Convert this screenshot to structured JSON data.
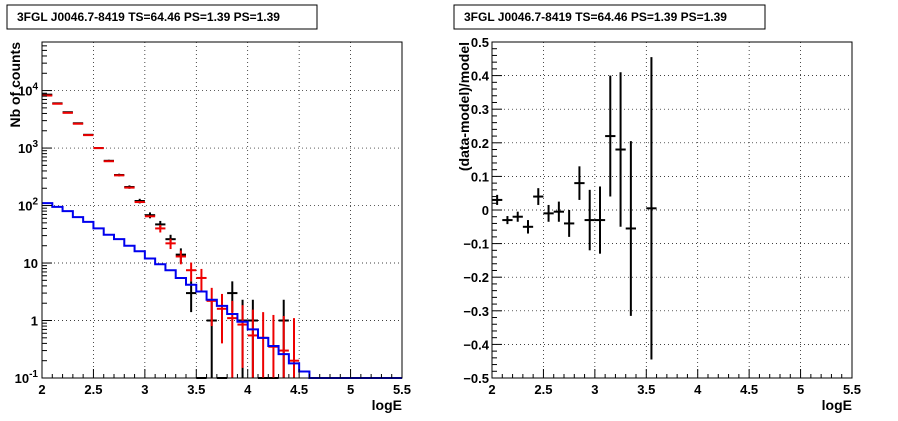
{
  "chart_data": [
    {
      "type": "scatter",
      "title": "3FGL J0046.7-8419 TS=64.46 PS=1.39 PS=1.39",
      "xlabel": "logE",
      "ylabel": "Nb of counts",
      "xlim": [
        2,
        5.5
      ],
      "ylim": [
        0.1,
        70000
      ],
      "yscale": "log",
      "grid": true,
      "x_ticks": [
        "2",
        "2.5",
        "3",
        "3.5",
        "4",
        "4.5",
        "5",
        "5.5"
      ],
      "y_ticks": [
        "10⁻¹",
        "1",
        "10",
        "10²",
        "10³",
        "10⁴"
      ],
      "series": [
        {
          "kind": "errorbar",
          "color": "#000000",
          "x": [
            2.05,
            2.15,
            2.25,
            2.35,
            2.45,
            2.55,
            2.65,
            2.75,
            2.85,
            2.95,
            3.05,
            3.15,
            3.25,
            3.35,
            3.45,
            3.55,
            3.65,
            3.75,
            3.85,
            3.95,
            4.05,
            4.15,
            4.25,
            4.35
          ],
          "y": [
            8500,
            6000,
            4200,
            2700,
            1700,
            1000,
            600,
            340,
            210,
            120,
            68,
            47,
            26,
            14,
            3,
            0.1,
            1,
            0.1,
            3,
            1,
            1,
            0.1,
            0.1,
            1
          ],
          "yerr_low": [
            85,
            75,
            60,
            50,
            40,
            30,
            25,
            18,
            14,
            11,
            8,
            7,
            5,
            4,
            1.6,
            0,
            0.95,
            0,
            1.6,
            0.95,
            0.95,
            0,
            0,
            0.95
          ],
          "yerr_high": [
            85,
            75,
            60,
            50,
            40,
            30,
            25,
            18,
            14,
            11,
            8,
            7,
            5,
            4,
            1.8,
            0,
            1.3,
            0,
            1.8,
            1.3,
            1.3,
            0,
            0,
            1.3
          ],
          "xerr": 0.05
        },
        {
          "kind": "errorbar",
          "color": "#ee0000",
          "x": [
            2.05,
            2.15,
            2.25,
            2.35,
            2.45,
            2.55,
            2.65,
            2.75,
            2.85,
            2.95,
            3.05,
            3.15,
            3.25,
            3.35,
            3.45,
            3.55,
            3.65,
            3.75,
            3.85,
            3.95,
            4.05,
            4.15,
            4.25,
            4.35,
            4.45
          ],
          "y": [
            8200,
            5900,
            4100,
            2650,
            1680,
            1000,
            590,
            335,
            205,
            115,
            65,
            40,
            22,
            13,
            7.5,
            5.5,
            2.2,
            1.6,
            1.1,
            0.85,
            0.55,
            0.5,
            0.35,
            0.3,
            0.2
          ],
          "yerr_low": [
            0,
            0,
            0,
            0,
            0,
            0,
            0,
            0,
            0,
            0,
            0,
            6,
            4.5,
            3.5,
            2.7,
            2.3,
            1.4,
            1.2,
            1.0,
            0.7,
            0.45,
            0.4,
            0.25,
            0.2,
            0.1
          ],
          "yerr_high": [
            0,
            0,
            0,
            0,
            0,
            0,
            0,
            0,
            0,
            0,
            0,
            6,
            4.5,
            3.5,
            2.7,
            2.4,
            1.5,
            1.3,
            1.1,
            1.0,
            1.0,
            0.9,
            0.9,
            0.9,
            0.9
          ],
          "xerr": 0.05
        },
        {
          "kind": "step",
          "color": "#0000ee",
          "bin_edges": [
            2.0,
            2.1,
            2.2,
            2.3,
            2.4,
            2.5,
            2.6,
            2.7,
            2.8,
            2.9,
            3.0,
            3.1,
            3.2,
            3.3,
            3.4,
            3.5,
            3.6,
            3.7,
            3.8,
            3.9,
            4.0,
            4.1,
            4.2,
            4.3,
            4.4,
            4.5,
            4.6,
            4.7,
            4.8,
            4.9,
            5.0,
            5.1,
            5.2,
            5.3,
            5.4,
            5.5
          ],
          "values": [
            110,
            95,
            80,
            63,
            52,
            40,
            31,
            26,
            20,
            16,
            12,
            9.5,
            7.5,
            5.5,
            4.2,
            3.2,
            2.3,
            1.8,
            1.3,
            0.95,
            0.7,
            0.5,
            0.36,
            0.26,
            0.18,
            0.13,
            0.1,
            0.1,
            0.1,
            0.1,
            0.1,
            0.1,
            0.1,
            0.1,
            0.1
          ]
        }
      ]
    },
    {
      "type": "scatter",
      "title": "3FGL J0046.7-8419 TS=64.46 PS=1.39 PS=1.39",
      "xlabel": "logE",
      "ylabel": "(data-model)/model",
      "xlim": [
        2,
        5.5
      ],
      "ylim": [
        -0.5,
        0.5
      ],
      "grid": true,
      "x_ticks": [
        "2",
        "2.5",
        "3",
        "3.5",
        "4",
        "4.5",
        "5",
        "5.5"
      ],
      "y_ticks": [
        "−0.5",
        "−0.4",
        "−0.3",
        "−0.2",
        "−0.1",
        "0",
        "0.1",
        "0.2",
        "0.3",
        "0.4",
        "0.5"
      ],
      "series": [
        {
          "kind": "errorbar",
          "color": "#000000",
          "x": [
            2.05,
            2.15,
            2.25,
            2.35,
            2.45,
            2.55,
            2.65,
            2.75,
            2.85,
            2.95,
            3.05,
            3.15,
            3.25,
            3.35,
            3.55
          ],
          "y": [
            0.03,
            -0.03,
            -0.02,
            -0.05,
            0.04,
            -0.01,
            -0.005,
            -0.04,
            0.08,
            -0.03,
            -0.03,
            0.22,
            0.18,
            -0.055,
            0.005
          ],
          "yerr": [
            0.015,
            0.012,
            0.015,
            0.02,
            0.025,
            0.025,
            0.03,
            0.04,
            0.05,
            0.09,
            0.1,
            0.18,
            0.23,
            0.26,
            0.45
          ],
          "xerr": 0.05
        }
      ]
    }
  ]
}
